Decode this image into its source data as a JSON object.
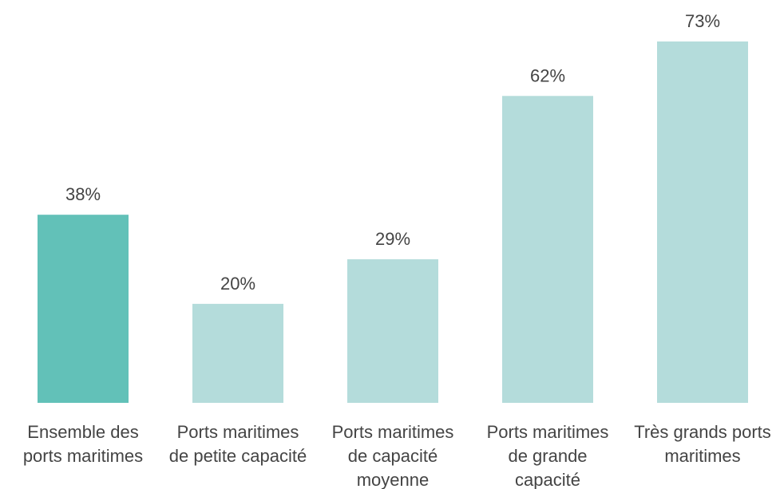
{
  "chart_data": {
    "type": "bar",
    "categories": [
      "Ensemble des ports maritimes",
      "Ports maritimes de petite capacité",
      "Ports maritimes de capacité moyenne",
      "Ports maritimes de grande capacité",
      "Très grands ports maritimes"
    ],
    "values": [
      38,
      20,
      29,
      62,
      73
    ],
    "value_labels": [
      "38%",
      "20%",
      "29%",
      "62%",
      "73%"
    ],
    "colors": [
      "#62c1b8",
      "#b4dcdb",
      "#b4dcdb",
      "#b4dcdb",
      "#b4dcdb"
    ],
    "ylim": [
      0,
      73
    ]
  }
}
